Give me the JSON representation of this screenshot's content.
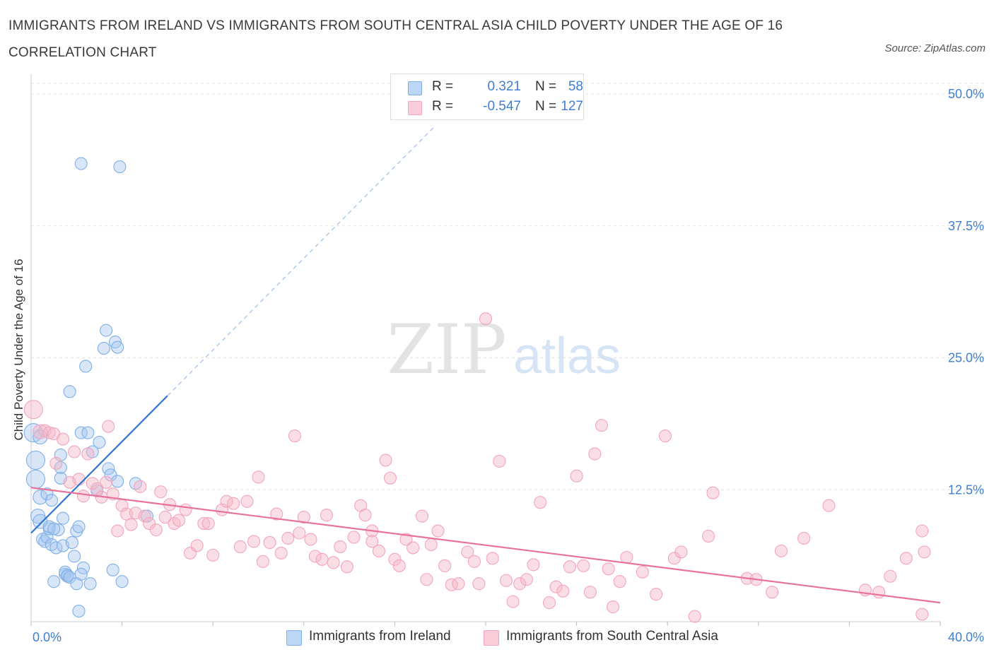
{
  "title": "IMMIGRANTS FROM IRELAND VS IMMIGRANTS FROM SOUTH CENTRAL ASIA CHILD POVERTY UNDER THE AGE OF 16 CORRELATION CHART",
  "source": "Source: ZipAtlas.com",
  "watermark": {
    "zip": "ZIP",
    "atlas": "atlas"
  },
  "stats": [
    {
      "r_label": "R =",
      "r_value": "0.321",
      "n_label": "N =",
      "n_value": "58",
      "color": "#a8c8f0"
    },
    {
      "r_label": "R =",
      "r_value": "-0.547",
      "n_label": "N =",
      "n_value": "127",
      "color": "#f5b6c8"
    }
  ],
  "legend": [
    {
      "label": "Immigrants from Ireland",
      "color": "#a8c8f0"
    },
    {
      "label": "Immigrants from South Central Asia",
      "color": "#f5b6c8"
    }
  ],
  "chart_data": {
    "type": "scatter",
    "title": "IMMIGRANTS FROM IRELAND VS IMMIGRANTS FROM SOUTH CENTRAL ASIA CHILD POVERTY UNDER THE AGE OF 16 CORRELATION CHART",
    "xlabel": "",
    "ylabel": "Child Poverty Under the Age of 16",
    "xlim": [
      0,
      40
    ],
    "ylim": [
      0,
      50
    ],
    "x_tick_labels": [
      "0.0%",
      "40.0%"
    ],
    "y_ticks": [
      12.5,
      25,
      37.5,
      50
    ],
    "y_tick_labels": [
      "12.5%",
      "25.0%",
      "37.5%",
      "50.0%"
    ],
    "grid": true,
    "legend_position": "bottom",
    "series": [
      {
        "name": "Immigrants from Ireland",
        "color": "#7fb0e6",
        "trend": {
          "x0": 0,
          "y0": 8.4,
          "x1": 6.0,
          "y1": 21.4,
          "dashed_to_x": 17.7,
          "dashed_to_y": 46.8,
          "color": "#2f74d0"
        },
        "points": [
          [
            0.1,
            17.9
          ],
          [
            0.2,
            15.3
          ],
          [
            0.2,
            13.5
          ],
          [
            0.3,
            10.0
          ],
          [
            0.4,
            11.8
          ],
          [
            0.4,
            9.5
          ],
          [
            0.5,
            7.8
          ],
          [
            0.6,
            7.6
          ],
          [
            0.7,
            8.0
          ],
          [
            0.7,
            12.1
          ],
          [
            0.8,
            8.8
          ],
          [
            0.8,
            9.0
          ],
          [
            0.9,
            11.5
          ],
          [
            0.9,
            7.3
          ],
          [
            1.0,
            3.8
          ],
          [
            1.1,
            7.0
          ],
          [
            1.2,
            8.7
          ],
          [
            1.3,
            13.6
          ],
          [
            1.3,
            14.6
          ],
          [
            1.3,
            15.8
          ],
          [
            1.4,
            7.2
          ],
          [
            1.4,
            9.8
          ],
          [
            1.5,
            4.5
          ],
          [
            1.5,
            4.7
          ],
          [
            1.6,
            4.3
          ],
          [
            1.6,
            4.4
          ],
          [
            1.7,
            4.2
          ],
          [
            1.7,
            21.8
          ],
          [
            1.8,
            7.5
          ],
          [
            1.9,
            6.2
          ],
          [
            2.0,
            3.6
          ],
          [
            2.0,
            8.6
          ],
          [
            2.1,
            9.0
          ],
          [
            2.1,
            1.0
          ],
          [
            2.2,
            17.9
          ],
          [
            2.3,
            5.1
          ],
          [
            2.4,
            24.2
          ],
          [
            2.5,
            17.9
          ],
          [
            2.6,
            3.6
          ],
          [
            2.7,
            16.1
          ],
          [
            2.9,
            12.4
          ],
          [
            3.0,
            17.0
          ],
          [
            3.2,
            25.9
          ],
          [
            3.3,
            27.6
          ],
          [
            3.4,
            14.5
          ],
          [
            3.5,
            13.9
          ],
          [
            3.6,
            4.9
          ],
          [
            3.7,
            26.5
          ],
          [
            3.8,
            26.0
          ],
          [
            3.8,
            13.3
          ],
          [
            4.0,
            3.8
          ],
          [
            4.6,
            13.1
          ],
          [
            5.1,
            10.0
          ],
          [
            2.2,
            43.4
          ],
          [
            3.9,
            43.1
          ],
          [
            0.4,
            17.5
          ],
          [
            2.2,
            4.5
          ],
          [
            1.0,
            8.8
          ]
        ]
      },
      {
        "name": "Immigrants from South Central Asia",
        "color": "#f3a5bd",
        "trend": {
          "x0": 0,
          "y0": 12.7,
          "x1": 40,
          "y1": 1.8,
          "color": "#e8739a"
        },
        "points": [
          [
            0.1,
            20.1
          ],
          [
            0.4,
            18.0
          ],
          [
            0.6,
            18.1
          ],
          [
            0.8,
            17.9
          ],
          [
            1.0,
            17.8
          ],
          [
            1.1,
            15.0
          ],
          [
            1.4,
            17.3
          ],
          [
            1.7,
            13.2
          ],
          [
            1.9,
            16.1
          ],
          [
            2.1,
            13.5
          ],
          [
            2.3,
            11.9
          ],
          [
            2.5,
            15.9
          ],
          [
            2.7,
            13.1
          ],
          [
            2.9,
            12.6
          ],
          [
            3.1,
            11.8
          ],
          [
            3.3,
            13.2
          ],
          [
            3.4,
            18.5
          ],
          [
            3.6,
            12.1
          ],
          [
            3.8,
            8.6
          ],
          [
            4.0,
            11.0
          ],
          [
            4.2,
            10.2
          ],
          [
            4.4,
            9.2
          ],
          [
            4.6,
            10.3
          ],
          [
            4.8,
            12.8
          ],
          [
            5.0,
            10.0
          ],
          [
            5.2,
            9.3
          ],
          [
            5.5,
            8.7
          ],
          [
            5.7,
            12.3
          ],
          [
            5.9,
            9.9
          ],
          [
            6.1,
            11.1
          ],
          [
            6.3,
            9.3
          ],
          [
            6.5,
            9.6
          ],
          [
            6.8,
            10.6
          ],
          [
            7.0,
            6.5
          ],
          [
            7.3,
            7.2
          ],
          [
            7.6,
            9.3
          ],
          [
            7.8,
            9.3
          ],
          [
            8.0,
            6.3
          ],
          [
            8.4,
            10.6
          ],
          [
            8.6,
            11.4
          ],
          [
            8.9,
            11.2
          ],
          [
            9.2,
            7.1
          ],
          [
            9.5,
            11.4
          ],
          [
            9.8,
            7.6
          ],
          [
            10.0,
            13.7
          ],
          [
            10.2,
            5.7
          ],
          [
            10.5,
            7.5
          ],
          [
            10.8,
            10.2
          ],
          [
            11.0,
            6.5
          ],
          [
            11.3,
            7.9
          ],
          [
            11.6,
            17.6
          ],
          [
            11.8,
            8.4
          ],
          [
            12.0,
            9.9
          ],
          [
            12.3,
            7.8
          ],
          [
            12.5,
            6.2
          ],
          [
            12.8,
            5.9
          ],
          [
            13.0,
            10.1
          ],
          [
            13.3,
            5.6
          ],
          [
            13.6,
            7.1
          ],
          [
            13.9,
            5.2
          ],
          [
            14.2,
            8.0
          ],
          [
            14.5,
            11.0
          ],
          [
            14.7,
            10.1
          ],
          [
            15.0,
            8.6
          ],
          [
            15.3,
            6.7
          ],
          [
            15.6,
            15.3
          ],
          [
            15.8,
            13.6
          ],
          [
            15.0,
            7.6
          ],
          [
            16.0,
            5.9
          ],
          [
            16.2,
            5.3
          ],
          [
            16.5,
            7.8
          ],
          [
            16.8,
            7.0
          ],
          [
            17.2,
            10.0
          ],
          [
            17.4,
            4.0
          ],
          [
            17.6,
            7.3
          ],
          [
            17.9,
            8.6
          ],
          [
            18.2,
            5.3
          ],
          [
            18.5,
            3.5
          ],
          [
            18.8,
            3.6
          ],
          [
            19.2,
            6.6
          ],
          [
            19.5,
            5.7
          ],
          [
            19.7,
            3.6
          ],
          [
            20.0,
            28.7
          ],
          [
            20.3,
            6.0
          ],
          [
            20.6,
            15.2
          ],
          [
            20.9,
            3.9
          ],
          [
            21.2,
            1.9
          ],
          [
            21.5,
            3.6
          ],
          [
            21.8,
            4.0
          ],
          [
            22.1,
            5.4
          ],
          [
            22.4,
            11.3
          ],
          [
            22.8,
            1.8
          ],
          [
            23.1,
            3.3
          ],
          [
            23.4,
            2.9
          ],
          [
            23.7,
            5.2
          ],
          [
            24.0,
            13.8
          ],
          [
            24.3,
            5.3
          ],
          [
            24.6,
            2.8
          ],
          [
            24.8,
            15.9
          ],
          [
            25.1,
            18.6
          ],
          [
            25.4,
            5.0
          ],
          [
            25.6,
            1.4
          ],
          [
            25.9,
            3.8
          ],
          [
            26.2,
            6.1
          ],
          [
            26.9,
            4.7
          ],
          [
            27.5,
            2.6
          ],
          [
            27.9,
            17.6
          ],
          [
            28.3,
            6.0
          ],
          [
            28.6,
            6.6
          ],
          [
            29.2,
            0.5
          ],
          [
            29.8,
            8.1
          ],
          [
            30.0,
            12.2
          ],
          [
            31.5,
            4.1
          ],
          [
            31.9,
            4.0
          ],
          [
            32.6,
            2.8
          ],
          [
            33.0,
            6.7
          ],
          [
            34.0,
            7.9
          ],
          [
            35.1,
            11.0
          ],
          [
            36.7,
            3.0
          ],
          [
            37.3,
            2.8
          ],
          [
            37.8,
            4.3
          ],
          [
            38.5,
            6.0
          ],
          [
            39.2,
            0.7
          ],
          [
            39.2,
            8.6
          ],
          [
            39.3,
            6.6
          ]
        ]
      }
    ]
  }
}
